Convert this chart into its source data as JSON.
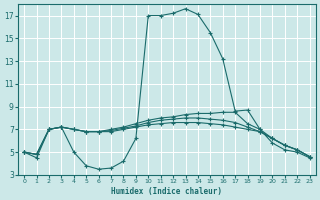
{
  "xlabel": "Humidex (Indice chaleur)",
  "bg_color": "#cce8e8",
  "grid_color": "#ffffff",
  "line_color": "#1a6b6b",
  "xlim": [
    -0.5,
    23.5
  ],
  "ylim": [
    3,
    18
  ],
  "yticks": [
    3,
    5,
    7,
    9,
    11,
    13,
    15,
    17
  ],
  "xticks": [
    0,
    1,
    2,
    3,
    4,
    5,
    6,
    7,
    8,
    9,
    10,
    11,
    12,
    13,
    14,
    15,
    16,
    17,
    18,
    19,
    20,
    21,
    22,
    23
  ],
  "series": [
    {
      "x": [
        0,
        1,
        2,
        3,
        4,
        5,
        6,
        7,
        8,
        9,
        10,
        11,
        12,
        13,
        14,
        15,
        16,
        17,
        18,
        19,
        20,
        21,
        22,
        23
      ],
      "y": [
        5,
        4.5,
        7,
        7.2,
        5.0,
        3.8,
        3.5,
        3.6,
        4.2,
        6.2,
        17.0,
        17.0,
        17.2,
        17.6,
        17.1,
        15.5,
        13.2,
        8.6,
        8.7,
        7.0,
        5.8,
        5.2,
        5.0,
        4.5
      ]
    },
    {
      "x": [
        0,
        1,
        2,
        3,
        4,
        5,
        6,
        7,
        8,
        9,
        10,
        11,
        12,
        13,
        14,
        15,
        16,
        17,
        18,
        19,
        20,
        21,
        22,
        23
      ],
      "y": [
        5,
        4.8,
        7.0,
        7.2,
        7.0,
        6.8,
        6.8,
        7.0,
        7.2,
        7.5,
        7.8,
        8.0,
        8.1,
        8.3,
        8.4,
        8.4,
        8.5,
        8.5,
        7.5,
        7.0,
        6.2,
        5.6,
        5.2,
        4.6
      ]
    },
    {
      "x": [
        0,
        1,
        2,
        3,
        4,
        5,
        6,
        7,
        8,
        9,
        10,
        11,
        12,
        13,
        14,
        15,
        16,
        17,
        18,
        19,
        20,
        21,
        22,
        23
      ],
      "y": [
        5,
        4.8,
        7.0,
        7.2,
        7.0,
        6.8,
        6.8,
        6.9,
        7.1,
        7.3,
        7.6,
        7.8,
        7.9,
        8.0,
        8.0,
        7.9,
        7.8,
        7.6,
        7.2,
        6.8,
        6.2,
        5.6,
        5.2,
        4.6
      ]
    },
    {
      "x": [
        0,
        1,
        2,
        3,
        4,
        5,
        6,
        7,
        8,
        9,
        10,
        11,
        12,
        13,
        14,
        15,
        16,
        17,
        18,
        19,
        20,
        21,
        22,
        23
      ],
      "y": [
        5,
        4.8,
        7.0,
        7.2,
        7.0,
        6.8,
        6.8,
        6.8,
        7.0,
        7.2,
        7.4,
        7.5,
        7.6,
        7.6,
        7.6,
        7.5,
        7.4,
        7.2,
        7.0,
        6.8,
        6.2,
        5.6,
        5.2,
        4.6
      ]
    }
  ]
}
